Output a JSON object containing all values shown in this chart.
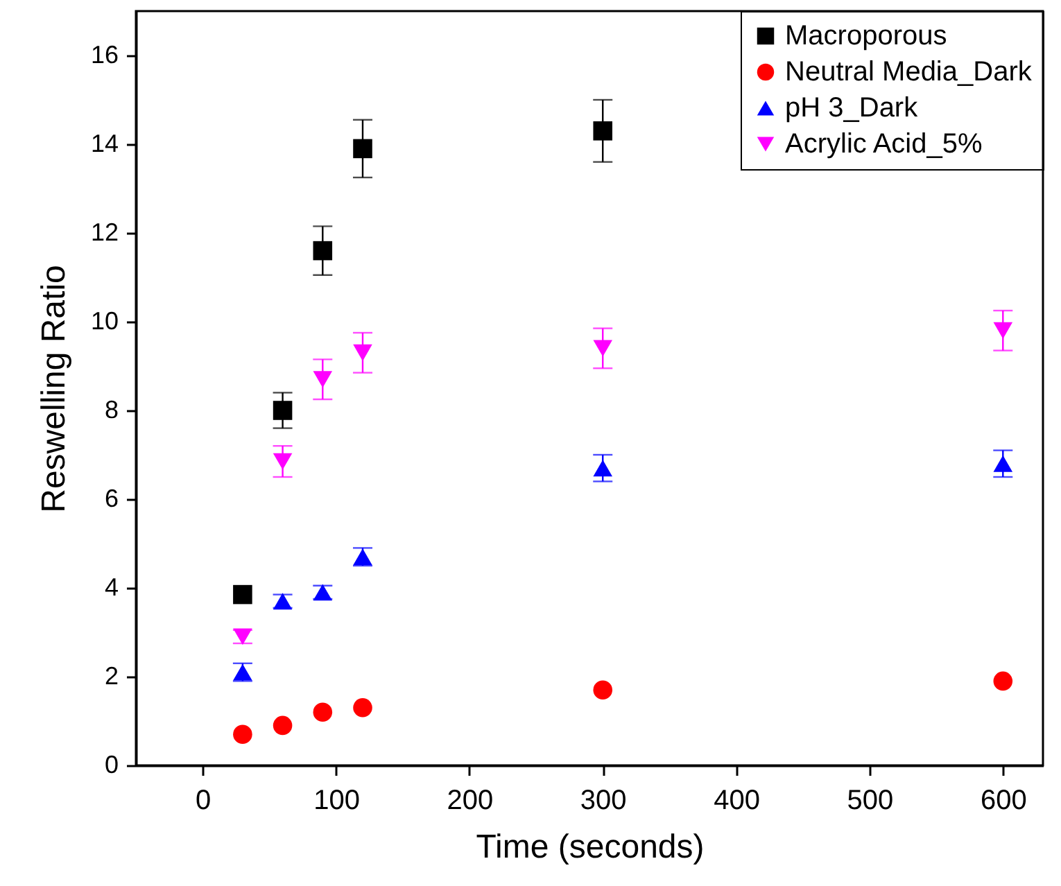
{
  "chart_data": {
    "type": "scatter",
    "xlabel": "Time (seconds)",
    "ylabel": "Reswelling Ratio",
    "x": [
      30,
      60,
      90,
      120,
      300,
      600
    ],
    "xlim": [
      -50,
      630
    ],
    "xticks": [
      0,
      100,
      200,
      300,
      400,
      500,
      600
    ],
    "ylim": [
      0,
      17
    ],
    "yticks": [
      0,
      2,
      4,
      6,
      8,
      10,
      12,
      14,
      16
    ],
    "grid": false,
    "legend": "top right",
    "series": [
      {
        "name": "Macroporous",
        "color": "#000000",
        "marker": "square",
        "values": [
          3.85,
          8.0,
          11.6,
          13.9,
          14.3,
          null
        ],
        "errors": [
          null,
          0.4,
          0.55,
          0.65,
          0.7,
          null
        ]
      },
      {
        "name": "Neutral Media_Dark",
        "color": "#ff0000",
        "marker": "circle",
        "values": [
          0.7,
          0.9,
          1.2,
          1.3,
          1.7,
          1.9
        ]
      },
      {
        "name": "pH 3_Dark",
        "color": "#0000ff",
        "marker": "triangle",
        "values": [
          2.1,
          3.7,
          3.9,
          4.7,
          6.7,
          6.8
        ],
        "errors": [
          0.2,
          0.15,
          0.15,
          0.2,
          0.3,
          0.3
        ]
      },
      {
        "name": "Acrylic Acid_5%",
        "color": "#ff00ff",
        "marker": "triangle-down",
        "values": [
          2.9,
          6.85,
          8.7,
          9.3,
          9.4,
          9.8
        ],
        "errors": [
          0.15,
          0.35,
          0.45,
          0.45,
          0.45,
          0.45
        ]
      }
    ]
  }
}
